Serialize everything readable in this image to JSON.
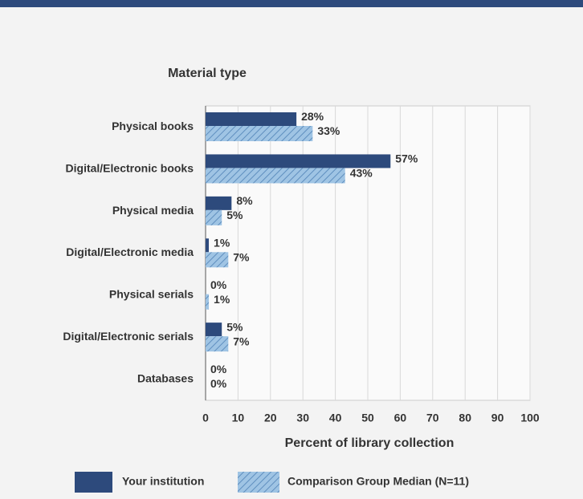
{
  "chart_data": {
    "type": "hbar",
    "title": "Material type",
    "x_label": "Percent of library collection",
    "categories": [
      "Physical books",
      "Digital/Electronic books",
      "Physical media",
      "Digital/Electronic media",
      "Physical serials",
      "Digital/Electronic serials",
      "Databases"
    ],
    "series": [
      {
        "name": "Your institution",
        "color": "#2d4a7c",
        "values": [
          28,
          57,
          8,
          1,
          0,
          5,
          0
        ],
        "value_labels": [
          "28%",
          "57%",
          "8%",
          "1%",
          "0%",
          "5%",
          "0%"
        ]
      },
      {
        "name": "Comparison Group Median (N=11)",
        "color": "#9fc4e4",
        "hatched": true,
        "values": [
          33,
          43,
          5,
          7,
          1,
          7,
          0
        ],
        "value_labels": [
          "33%",
          "43%",
          "5%",
          "7%",
          "1%",
          "7%",
          "0%"
        ]
      }
    ],
    "xlim": [
      0,
      100
    ],
    "xticks": [
      0,
      10,
      20,
      30,
      40,
      50,
      60,
      70,
      80,
      90,
      100
    ],
    "grid": true
  }
}
